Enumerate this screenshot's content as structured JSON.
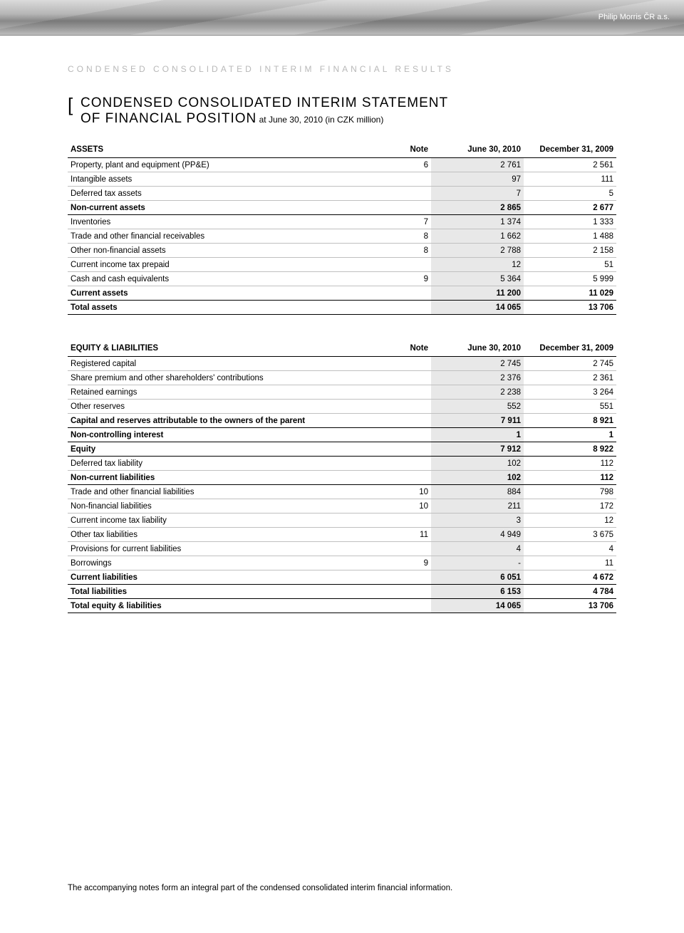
{
  "header": {
    "company": "Philip Morris ČR a.s.",
    "section_label": "CONDENSED CONSOLIDATED INTERIM FINANCIAL RESULTS"
  },
  "title": {
    "bracket": "[",
    "line1": "CONDENSED CONSOLIDATED INTERIM STATEMENT",
    "line2": "OF FINANCIAL POSITION",
    "sub": " at June 30, 2010 (in CZK million)"
  },
  "columns": {
    "note": "Note",
    "col1": "June 30, 2010",
    "col2": "December 31, 2009"
  },
  "assets": {
    "heading": "ASSETS",
    "rows": [
      {
        "label": "Property, plant and equipment (PP&E)",
        "note": "6",
        "v1": "2 761",
        "v2": "2 561",
        "bold": false,
        "heavy": false
      },
      {
        "label": "Intangible assets",
        "note": "",
        "v1": "97",
        "v2": "111",
        "bold": false,
        "heavy": false
      },
      {
        "label": "Deferred tax assets",
        "note": "",
        "v1": "7",
        "v2": "5",
        "bold": false,
        "heavy": false
      },
      {
        "label": "Non-current assets",
        "note": "",
        "v1": "2 865",
        "v2": "2 677",
        "bold": true,
        "heavy": true
      },
      {
        "label": "Inventories",
        "note": "7",
        "v1": "1 374",
        "v2": "1 333",
        "bold": false,
        "heavy": false
      },
      {
        "label": "Trade and other financial receivables",
        "note": "8",
        "v1": "1 662",
        "v2": "1 488",
        "bold": false,
        "heavy": false
      },
      {
        "label": "Other non-financial assets",
        "note": "8",
        "v1": "2 788",
        "v2": "2 158",
        "bold": false,
        "heavy": false
      },
      {
        "label": "Current income tax prepaid",
        "note": "",
        "v1": "12",
        "v2": "51",
        "bold": false,
        "heavy": false
      },
      {
        "label": "Cash and cash equivalents",
        "note": "9",
        "v1": "5 364",
        "v2": "5 999",
        "bold": false,
        "heavy": false
      },
      {
        "label": "Current assets",
        "note": "",
        "v1": "11 200",
        "v2": "11 029",
        "bold": true,
        "heavy": true
      },
      {
        "label": "Total assets",
        "note": "",
        "v1": "14 065",
        "v2": "13 706",
        "bold": true,
        "heavy": true
      }
    ]
  },
  "equity": {
    "heading": "EQUITY & LIABILITIES",
    "rows": [
      {
        "label": "Registered capital",
        "note": "",
        "v1": "2 745",
        "v2": "2 745",
        "bold": false,
        "heavy": false
      },
      {
        "label": "Share premium and other shareholders' contributions",
        "note": "",
        "v1": "2 376",
        "v2": "2 361",
        "bold": false,
        "heavy": false
      },
      {
        "label": "Retained earnings",
        "note": "",
        "v1": "2 238",
        "v2": "3 264",
        "bold": false,
        "heavy": false
      },
      {
        "label": "Other reserves",
        "note": "",
        "v1": "552",
        "v2": "551",
        "bold": false,
        "heavy": false
      },
      {
        "label": "Capital and reserves attributable to the owners of the parent",
        "note": "",
        "v1": "7 911",
        "v2": "8 921",
        "bold": true,
        "heavy": true
      },
      {
        "label": "Non-controlling interest",
        "note": "",
        "v1": "1",
        "v2": "1",
        "bold": true,
        "heavy": true
      },
      {
        "label": "Equity",
        "note": "",
        "v1": "7 912",
        "v2": "8 922",
        "bold": true,
        "heavy": true
      },
      {
        "label": "Deferred tax liability",
        "note": "",
        "v1": "102",
        "v2": "112",
        "bold": false,
        "heavy": false
      },
      {
        "label": "Non-current liabilities",
        "note": "",
        "v1": "102",
        "v2": "112",
        "bold": true,
        "heavy": true
      },
      {
        "label": "Trade and other financial liabilities",
        "note": "10",
        "v1": "884",
        "v2": "798",
        "bold": false,
        "heavy": false
      },
      {
        "label": "Non-financial liabilities",
        "note": "10",
        "v1": "211",
        "v2": "172",
        "bold": false,
        "heavy": false
      },
      {
        "label": "Current income tax liability",
        "note": "",
        "v1": "3",
        "v2": "12",
        "bold": false,
        "heavy": false
      },
      {
        "label": "Other tax liabilities",
        "note": "11",
        "v1": "4 949",
        "v2": "3 675",
        "bold": false,
        "heavy": false
      },
      {
        "label": "Provisions for current liabilities",
        "note": "",
        "v1": "4",
        "v2": "4",
        "bold": false,
        "heavy": false
      },
      {
        "label": "Borrowings",
        "note": "9",
        "v1": "-",
        "v2": "11",
        "bold": false,
        "heavy": false
      },
      {
        "label": "Current liabilities",
        "note": "",
        "v1": "6 051",
        "v2": "4 672",
        "bold": true,
        "heavy": true
      },
      {
        "label": "Total liabilities",
        "note": "",
        "v1": "6 153",
        "v2": "4 784",
        "bold": true,
        "heavy": true
      },
      {
        "label": "Total equity & liabilities",
        "note": "",
        "v1": "14 065",
        "v2": "13 706",
        "bold": true,
        "heavy": true
      }
    ]
  },
  "footnote": "The accompanying notes form an integral part of the condensed consolidated interim financial information.",
  "styling": {
    "shade_bg": "#e8e8e8",
    "border_light": "#c0c0c0",
    "border_heavy": "#000000",
    "label_color": "#b8b8b8"
  }
}
